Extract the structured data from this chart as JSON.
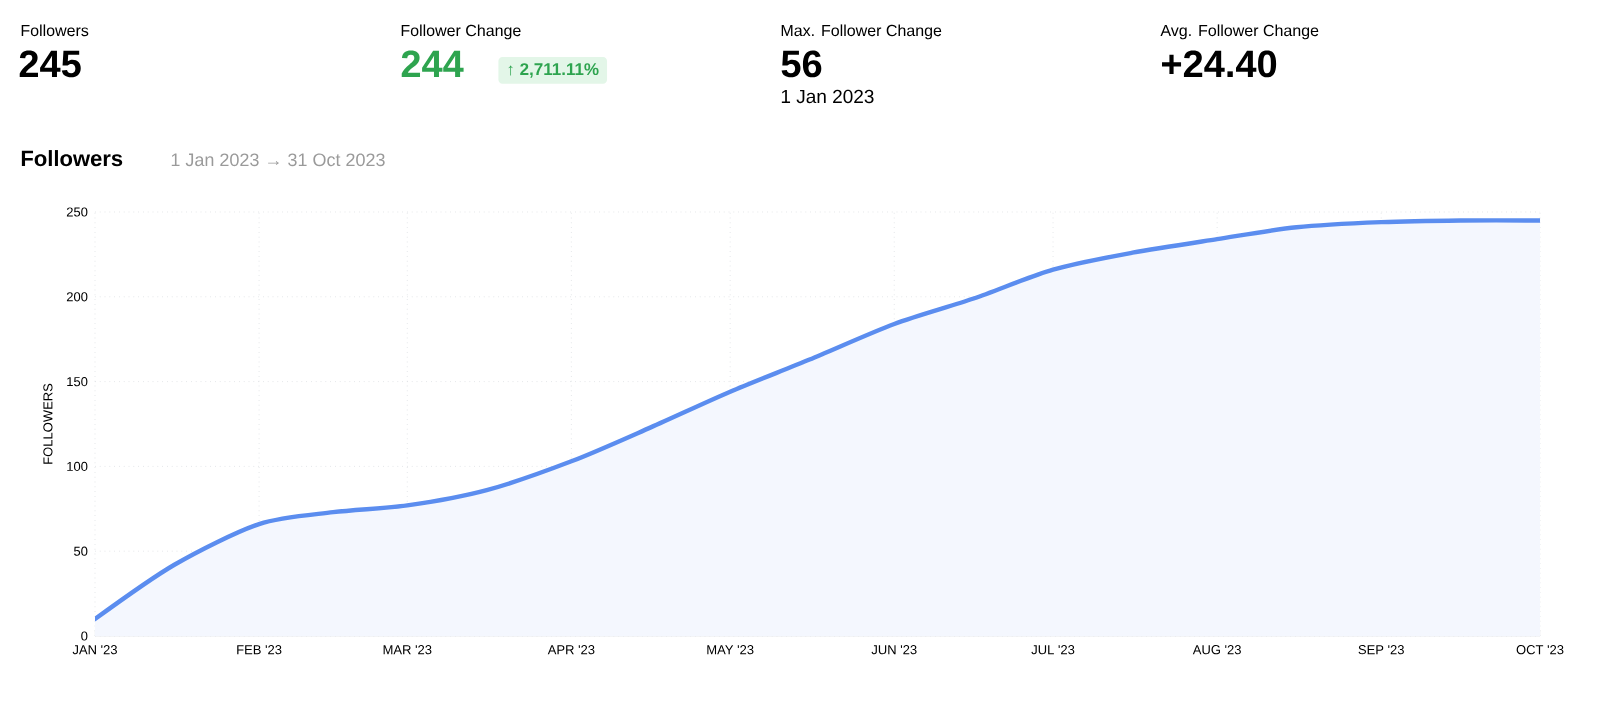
{
  "chart_data": {
    "type": "area",
    "title": "Followers",
    "subtitle": "1 Jan 2023 → 31 Oct 2023",
    "ylabel": "FOLLOWERS",
    "annotations": [
      "Followers",
      "245",
      "Follower Change",
      "244",
      "↑ 2,711.11%",
      "Max. Follower Change",
      "56",
      "1 Jan 2023",
      "Avg. Follower Change",
      "+24.40"
    ],
    "x": [
      "2023-01-01",
      "2023-01-16",
      "2023-02-01",
      "2023-02-15",
      "2023-03-01",
      "2023-03-16",
      "2023-04-01",
      "2023-04-16",
      "2023-05-01",
      "2023-05-16",
      "2023-06-01",
      "2023-06-16",
      "2023-07-01",
      "2023-07-16",
      "2023-08-01",
      "2023-08-16",
      "2023-09-01",
      "2023-09-16",
      "2023-10-01"
    ],
    "series": [
      {
        "color": "#5b8def",
        "values": [
          10,
          42,
          66,
          73,
          77,
          86,
          103,
          123,
          144,
          163,
          184,
          199,
          216,
          226,
          234,
          241,
          244,
          245,
          245
        ]
      }
    ],
    "xlim": [
      "2023-01-01",
      "2023-10-01"
    ],
    "xticks": [
      {
        "value": "2023-01-01",
        "label": "JAN '23"
      },
      {
        "value": "2023-02-01",
        "label": "FEB '23"
      },
      {
        "value": "2023-03-01",
        "label": "MAR '23"
      },
      {
        "value": "2023-04-01",
        "label": "APR '23"
      },
      {
        "value": "2023-05-01",
        "label": "MAY '23"
      },
      {
        "value": "2023-06-01",
        "label": "JUN '23"
      },
      {
        "value": "2023-07-01",
        "label": "JUL '23"
      },
      {
        "value": "2023-08-01",
        "label": "AUG '23"
      },
      {
        "value": "2023-09-01",
        "label": "SEP '23"
      },
      {
        "value": "2023-10-01",
        "label": "OCT '23"
      }
    ],
    "ylim": [
      0,
      250
    ],
    "yticks": [
      0,
      50,
      100,
      150,
      200,
      250
    ],
    "grid": true,
    "marker": "none",
    "line_style": "solid"
  }
}
